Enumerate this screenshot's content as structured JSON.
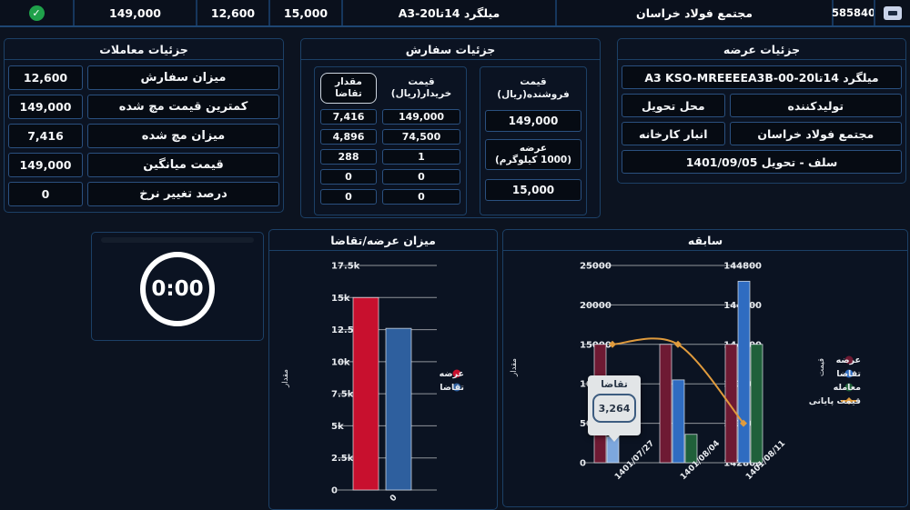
{
  "colors": {
    "supply_red": "#c8102e",
    "demand_blue": "#2e5f9e",
    "hist_supply": "#6e1a33",
    "hist_demand": "#2f6cc1",
    "hist_demand_highlight": "#7da7dd",
    "hist_trade": "#20603a",
    "price_line": "#e09b3d",
    "check_green": "#1fa14a",
    "gridline": "rgba(255,255,255,0.55)"
  },
  "top_bar": {
    "status_icon": "check-circle",
    "min_price": "149,000",
    "order_qty": "12,600",
    "supply_qty": "15,000",
    "product": "میلگرد 14تا20-A3",
    "producer": "مجتمع فولاد خراسان",
    "code": "585840",
    "toggle_icon": "minimize"
  },
  "trade_panel": {
    "title": "جزئیات معاملات",
    "rows": [
      {
        "label": "میزان سفارش",
        "value": "12,600"
      },
      {
        "label": "کمترین قیمت مچ شده",
        "value": "149,000"
      },
      {
        "label": "میزان مچ شده",
        "value": "7,416"
      },
      {
        "label": "قیمت میانگین",
        "value": "149,000"
      },
      {
        "label": "درصد تغییر نرخ",
        "value": "0"
      }
    ]
  },
  "order_panel": {
    "title": "جزئیات سفارش",
    "buyer_price_header": "قیمت خریدار(ریال)",
    "demand_qty_header": "مقدار تقاضا",
    "rows": [
      {
        "price": "149,000",
        "qty": "7,416"
      },
      {
        "price": "74,500",
        "qty": "4,896"
      },
      {
        "price": "1",
        "qty": "288"
      },
      {
        "price": "0",
        "qty": "0"
      },
      {
        "price": "0",
        "qty": "0"
      }
    ],
    "seller_price_header": "قیمت فروشنده(ریال)",
    "seller_price": "149,000",
    "supply_header_line1": "عرضه",
    "supply_header_line2": "(1000 کیلوگرم)",
    "supply_value": "15,000"
  },
  "supply_panel": {
    "title": "جزئیات عرضه",
    "product": "میلگرد 14تا20-A3 KSO-MREEEEA3B-00",
    "producer_header": "تولیدکننده",
    "delivery_header": "محل تحویل",
    "producer": "مجتمع فولاد خراسان",
    "delivery": "انبار کارخانه",
    "contract": "سلف - تحویل 1401/09/05"
  },
  "timer": {
    "value": "0:00"
  },
  "chart_data": [
    {
      "id": "supply_demand",
      "type": "bar",
      "title": "میزان عرضه/تقاضا",
      "categories": [
        "0"
      ],
      "series": [
        {
          "name": "عرضه",
          "color": "#c8102e",
          "values": [
            15000
          ]
        },
        {
          "name": "تقاضا",
          "color": "#2e5f9e",
          "values": [
            12600
          ]
        }
      ],
      "ylabel": "مقدار",
      "ylim": [
        0,
        17500
      ],
      "yticks": [
        0,
        2500,
        5000,
        7500,
        10000,
        12500,
        15000,
        17500
      ],
      "ytick_labels": [
        "0",
        "2.5k",
        "5k",
        "7.5k",
        "10k",
        "12.5k",
        "15k",
        "17.5k"
      ],
      "grid": true,
      "legend_position": "right"
    },
    {
      "id": "history",
      "type": "bar+line",
      "title": "سابقه",
      "categories": [
        "1401/07/27",
        "1401/08/04",
        "1401/08/11"
      ],
      "bar_series": [
        {
          "name": "عرضه",
          "color": "#6e1a33",
          "values": [
            15000,
            15000,
            15000
          ]
        },
        {
          "name": "تقاضا",
          "color": "#2f6cc1",
          "values": [
            3264,
            10500,
            23000
          ],
          "highlight_index": 0,
          "highlight_color": "#7da7dd"
        },
        {
          "name": "معامله",
          "color": "#20603a",
          "values": [
            0,
            3600,
            15000
          ]
        }
      ],
      "line_series": [
        {
          "name": "قیمت پایانی",
          "color": "#e09b3d",
          "axis": "right",
          "values": [
            144000,
            144000,
            143200
          ]
        }
      ],
      "ylabel_left": "مقدار",
      "ylabel_right": "قیمت",
      "left_ylim": [
        0,
        25000
      ],
      "left_ticks": [
        0,
        5000,
        10000,
        15000,
        20000,
        25000
      ],
      "left_tick_labels": [
        "0",
        "5000",
        "10000",
        "15000",
        "20000",
        "25000"
      ],
      "right_ylim": [
        142800,
        144800
      ],
      "right_ticks": [
        142800,
        143200,
        143600,
        144000,
        144400,
        144800
      ],
      "right_tick_labels": [
        "142800",
        "143200",
        "143600",
        "144000",
        "144400",
        "144800"
      ],
      "grid": true,
      "legend_position": "right",
      "tooltip": {
        "series": "تقاضا",
        "category": "1401/07/27",
        "value": "3,264"
      }
    }
  ]
}
